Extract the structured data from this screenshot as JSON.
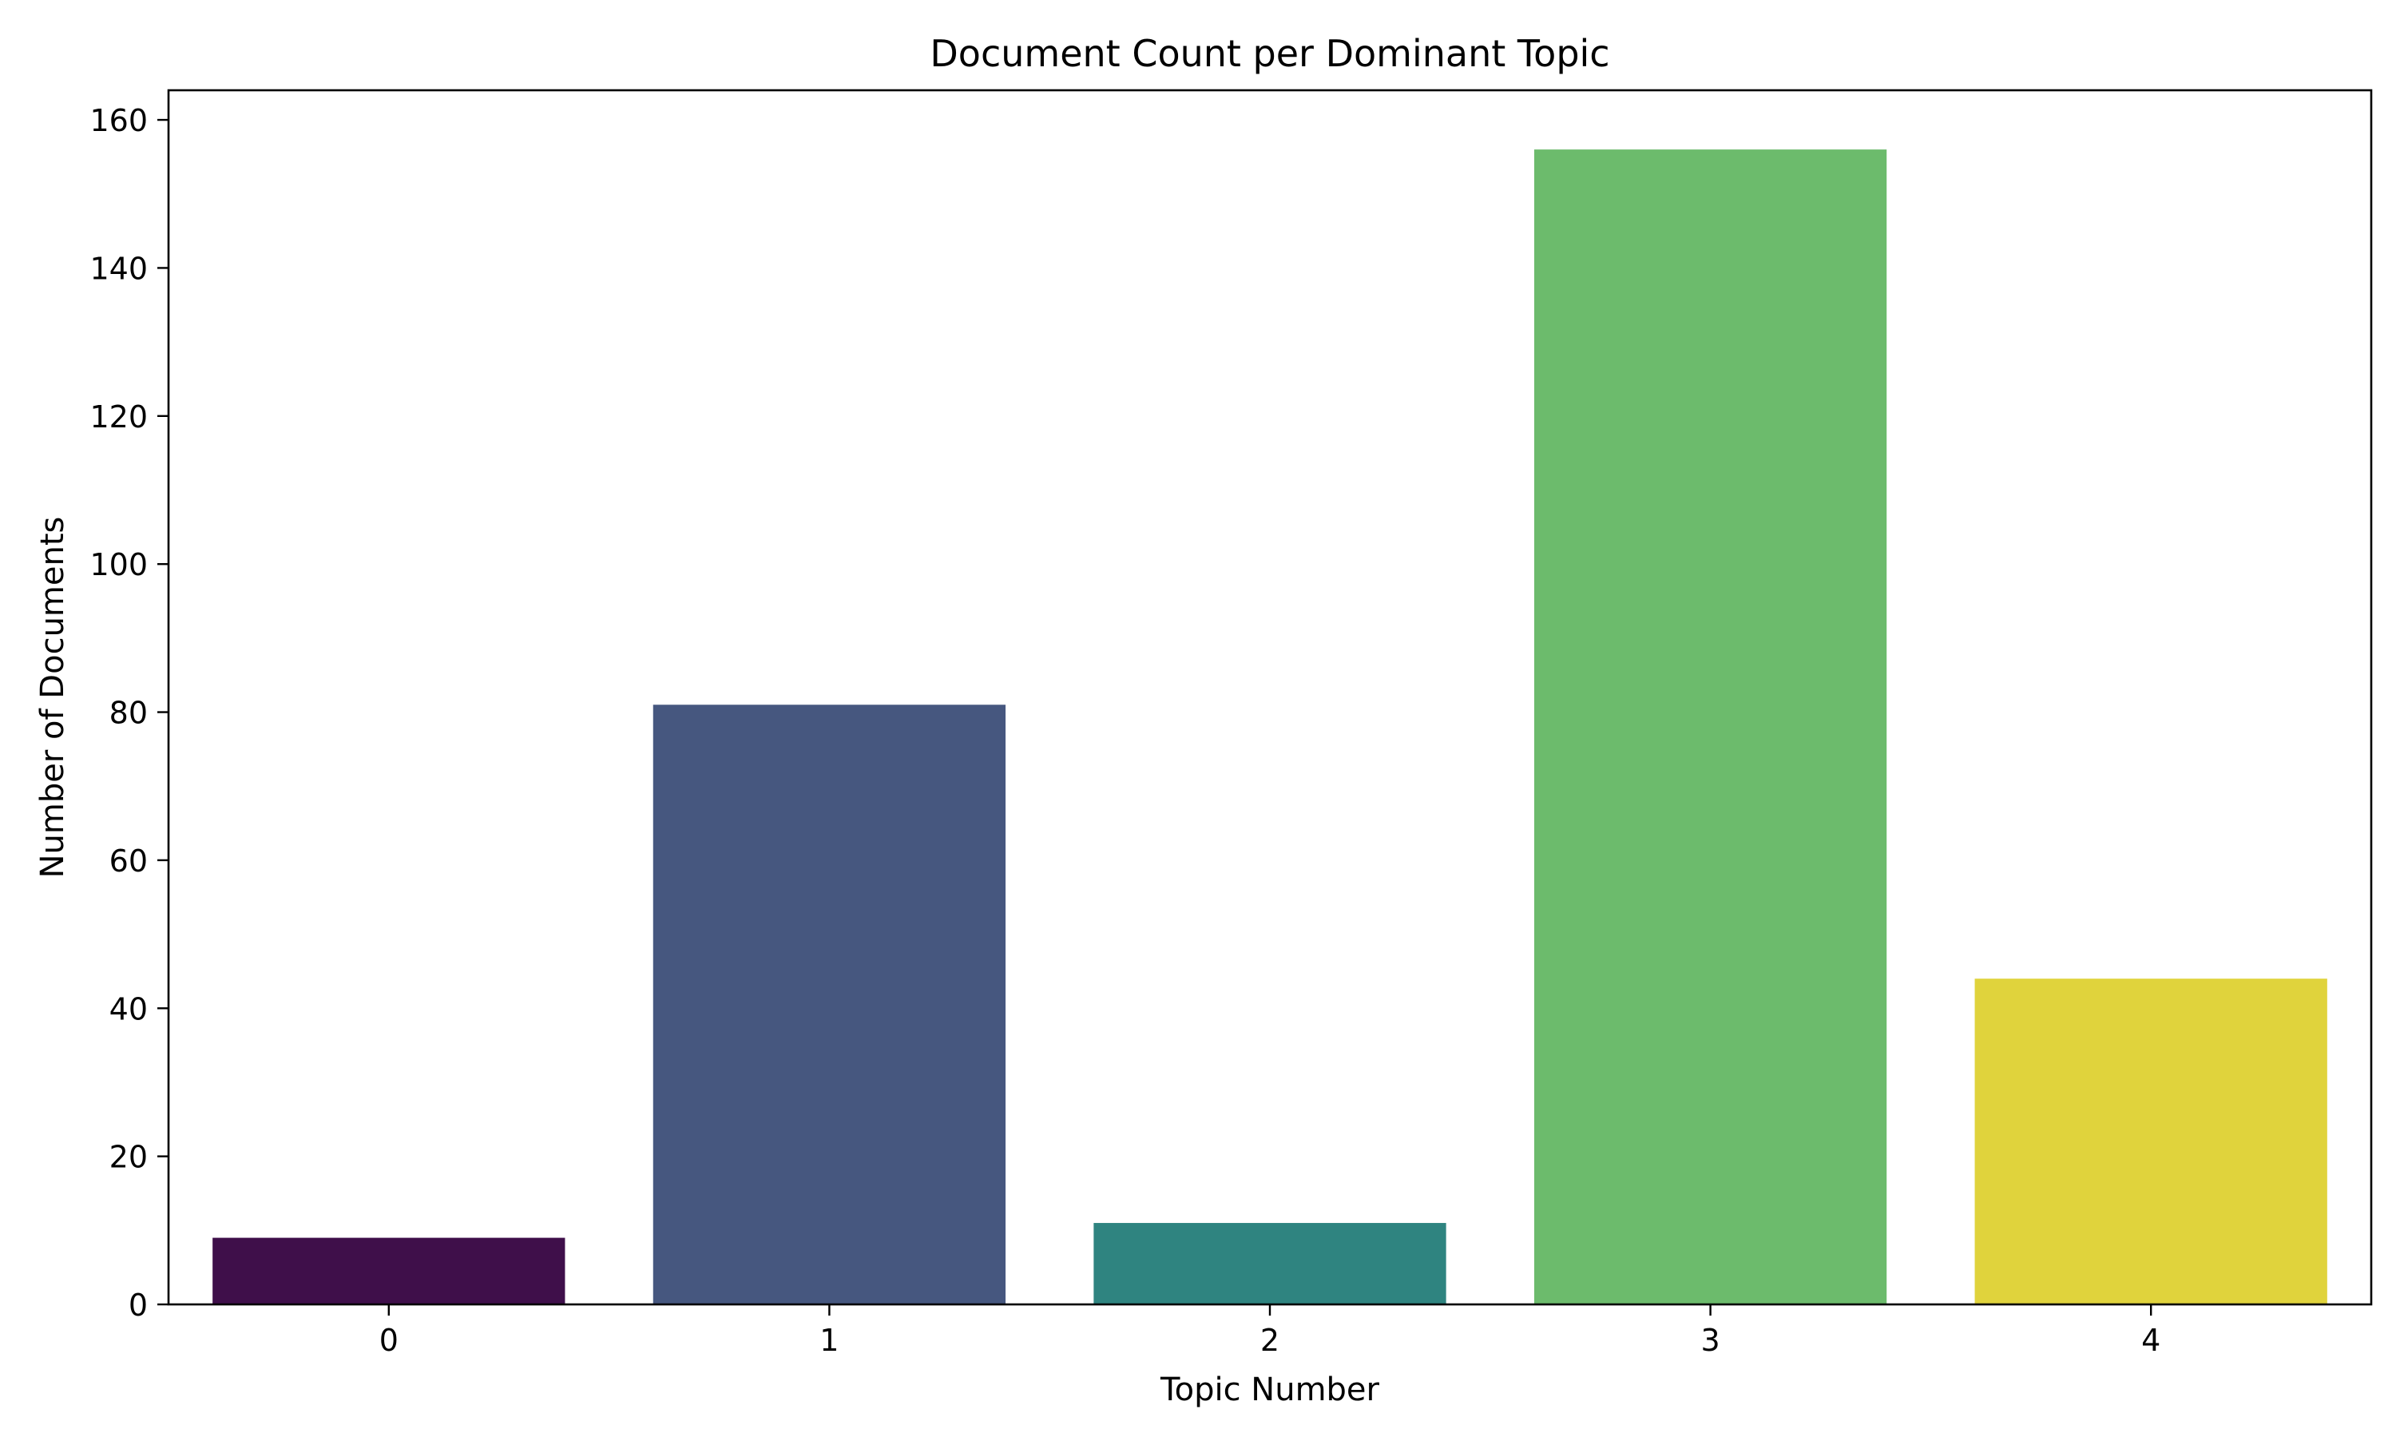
{
  "chart_data": {
    "type": "bar",
    "title": "Document Count per Dominant Topic",
    "xlabel": "Topic Number",
    "ylabel": "Number of Documents",
    "categories": [
      "0",
      "1",
      "2",
      "3",
      "4"
    ],
    "values": [
      9,
      81,
      11,
      156,
      44
    ],
    "colors": [
      "#3f0f4a",
      "#46577f",
      "#2f8480",
      "#6cbb6c",
      "#e0d33c"
    ],
    "ylim": [
      0,
      164
    ],
    "yticks": [
      0,
      20,
      40,
      60,
      80,
      100,
      120,
      140,
      160
    ],
    "grid": false,
    "legend": "none"
  }
}
